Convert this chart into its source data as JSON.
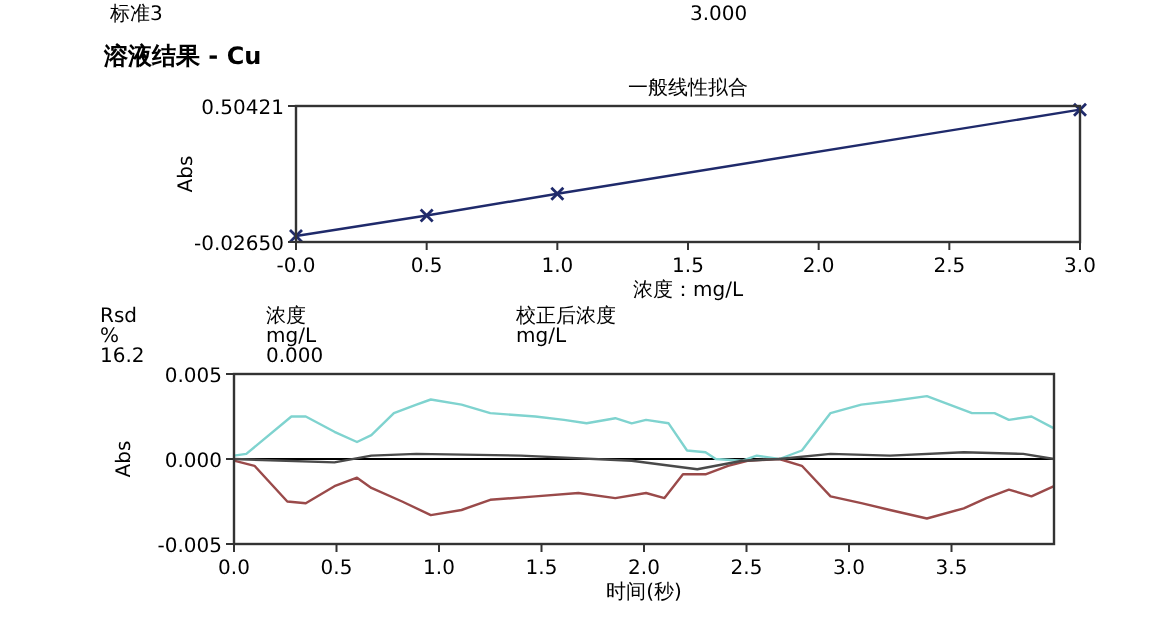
{
  "chart_data": [
    {
      "type": "line",
      "title": "溶液结果 - Cu",
      "subtitle": "一般线性拟合",
      "xlabel": "浓度：mg/L",
      "ylabel": "Abs",
      "annotations": [
        "标准3",
        "3.000"
      ],
      "xlim": [
        0,
        3
      ],
      "ylim": [
        -0.0265,
        0.50421
      ],
      "xticks": [
        {
          "value": 0,
          "label": "-0.0"
        },
        {
          "value": 0.5,
          "label": "0.5"
        },
        {
          "value": 1,
          "label": "1.0"
        },
        {
          "value": 1.5,
          "label": "1.5"
        },
        {
          "value": 2,
          "label": "2.0"
        },
        {
          "value": 2.5,
          "label": "2.5"
        },
        {
          "value": 3,
          "label": "3.0"
        }
      ],
      "yticks": [
        {
          "value": -0.0265,
          "label": "-0.02650"
        },
        0.50421
      ],
      "marker": "cross",
      "line_style": "solid",
      "series": [
        {
          "color": "#1f2a6b",
          "x": [
            0,
            0.5,
            1,
            3
          ],
          "values": [
            -0.003,
            0.077,
            0.162,
            0.49
          ]
        }
      ]
    },
    {
      "type": "line",
      "xlabel": "时间(秒)",
      "ylabel": "Abs",
      "annotations": [
        "Rsd",
        "%",
        "16.2",
        "浓度",
        "mg/L",
        "0.000",
        "校正后浓度",
        "mg/L"
      ],
      "xlim": [
        0,
        4
      ],
      "ylim": [
        -0.005,
        0.005
      ],
      "xticks": [
        {
          "value": 0,
          "label": "0.0"
        },
        {
          "value": 0.5,
          "label": "0.5"
        },
        {
          "value": 1,
          "label": "1.0"
        },
        {
          "value": 1.5,
          "label": "1.5"
        },
        {
          "value": 2,
          "label": "2.0"
        },
        {
          "value": 2.5,
          "label": "2.5"
        },
        {
          "value": 3,
          "label": "3.0"
        },
        {
          "value": 3.5,
          "label": "3.5"
        }
      ],
      "yticks": [
        {
          "value": -0.005,
          "label": "-0.005"
        },
        {
          "value": 0,
          "label": "0.000"
        },
        {
          "value": 0.005,
          "label": "0.005"
        }
      ],
      "marker": "none",
      "line_style": "solid",
      "ref_lines": [
        {
          "axis": "y",
          "value": 0,
          "color": "#000000"
        }
      ],
      "series": [
        {
          "color": "#7fd3cf",
          "x": [
            0,
            0.06,
            0.28,
            0.35,
            0.49,
            0.6,
            0.67,
            0.78,
            0.89,
            0.96,
            1.11,
            1.25,
            1.47,
            1.61,
            1.72,
            1.86,
            1.94,
            2.01,
            2.12,
            2.21,
            2.3,
            2.35,
            2.48,
            2.55,
            2.66,
            2.77,
            2.91,
            3.06,
            3.2,
            3.38,
            3.49,
            3.6,
            3.71,
            3.78,
            3.89,
            4.0
          ],
          "values": [
            0.0002,
            0.0003,
            0.0025,
            0.0025,
            0.0016,
            0.001,
            0.0014,
            0.0027,
            0.0032,
            0.0035,
            0.0032,
            0.0027,
            0.0025,
            0.0023,
            0.0021,
            0.0024,
            0.0021,
            0.0023,
            0.0021,
            0.0005,
            0.0004,
            0,
            -0.0001,
            0.0002,
            0,
            0.0005,
            0.0027,
            0.0032,
            0.0034,
            0.0037,
            0.0032,
            0.0027,
            0.0027,
            0.0023,
            0.0025,
            0.0018
          ]
        },
        {
          "color": "#9a4a4a",
          "x": [
            0,
            0.1,
            0.26,
            0.35,
            0.49,
            0.6,
            0.67,
            0.82,
            0.96,
            1.11,
            1.25,
            1.47,
            1.68,
            1.86,
            2.01,
            2.1,
            2.19,
            2.3,
            2.41,
            2.51,
            2.66,
            2.77,
            2.91,
            3.06,
            3.2,
            3.38,
            3.56,
            3.67,
            3.78,
            3.89,
            4.0
          ],
          "values": [
            -0.0001,
            -0.0004,
            -0.0025,
            -0.0026,
            -0.0016,
            -0.0011,
            -0.0017,
            -0.0025,
            -0.0033,
            -0.003,
            -0.0024,
            -0.0022,
            -0.002,
            -0.0023,
            -0.002,
            -0.0023,
            -0.0009,
            -0.0009,
            -0.0004,
            -0.0001,
            0,
            -0.0004,
            -0.0022,
            -0.0026,
            -0.003,
            -0.0035,
            -0.0029,
            -0.0023,
            -0.0018,
            -0.0022,
            -0.0016
          ]
        },
        {
          "color": "#4a4a4a",
          "x": [
            0,
            0.49,
            0.67,
            0.89,
            1.4,
            1.94,
            2.26,
            2.48,
            2.66,
            2.91,
            3.2,
            3.56,
            3.85,
            4.0
          ],
          "values": [
            0,
            -0.0002,
            0.0002,
            0.0003,
            0.0002,
            -0.0001,
            -0.0006,
            -0.0001,
            0,
            0.0003,
            0.0002,
            0.0004,
            0.0003,
            0
          ]
        }
      ]
    }
  ]
}
